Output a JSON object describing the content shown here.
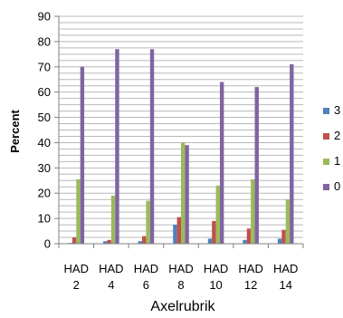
{
  "chart_data": {
    "type": "bar",
    "categories": [
      [
        "HAD",
        "2"
      ],
      [
        "HAD",
        "4"
      ],
      [
        "HAD",
        "6"
      ],
      [
        "HAD",
        "8"
      ],
      [
        "HAD",
        "10"
      ],
      [
        "HAD",
        "12"
      ],
      [
        "HAD",
        "14"
      ]
    ],
    "series": [
      {
        "name": "0",
        "color": "#8064a2",
        "values": [
          70,
          77,
          77,
          39,
          64,
          62,
          71
        ]
      },
      {
        "name": "1",
        "color": "#9bbb59",
        "values": [
          25.5,
          19,
          17,
          40,
          23,
          25.5,
          17.5
        ]
      },
      {
        "name": "2",
        "color": "#c0504d",
        "values": [
          2.5,
          1.5,
          3,
          10.5,
          9,
          6,
          5.5
        ]
      },
      {
        "name": "3",
        "color": "#4f81bd",
        "values": [
          0.3,
          1,
          1,
          7.5,
          2,
          1.5,
          2
        ]
      }
    ],
    "legend_order": [
      "3",
      "2",
      "1",
      "0"
    ],
    "xlabel": "Axelrubrik",
    "ylabel": "Percent",
    "ylim": [
      0,
      90
    ],
    "yticks": [
      0,
      10,
      20,
      30,
      40,
      50,
      60,
      70,
      80,
      90
    ],
    "grid": true,
    "legend_position": "right"
  }
}
